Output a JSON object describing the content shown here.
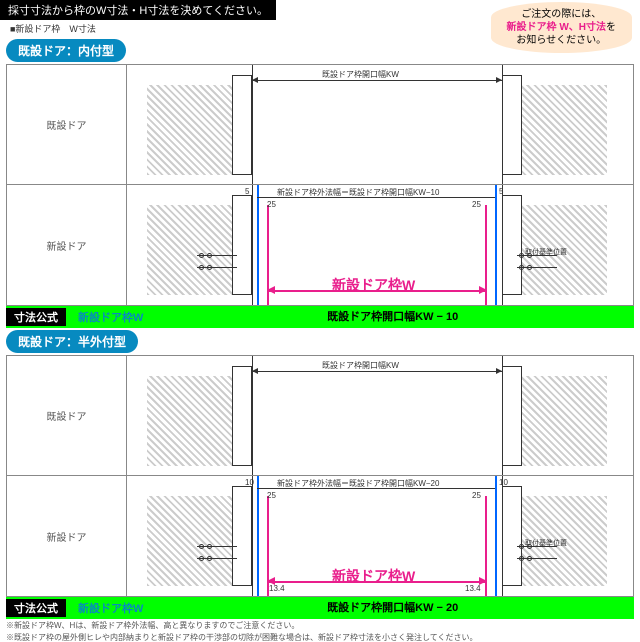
{
  "header_instruction": "採寸寸法から枠のW寸法・H寸法を決めてください。",
  "header_sub": "■新設ドア枠　W寸法",
  "notice": {
    "l1": "ご注文の際には、",
    "l2": "新設ドア枠 W、H寸法",
    "l3": "お知らせください。"
  },
  "sections": [
    {
      "badge": "既設ドア：内付型",
      "rows": [
        {
          "label": "既設ドア",
          "dim_top": "既設ドア枠開口幅KW"
        },
        {
          "label": "新設ドア",
          "dim_top": "新設ドア枠外法幅＝既設ドア枠開口幅KW−10",
          "small_left": "5",
          "small_right": "5",
          "inner": "25",
          "pink_label": "新設ドア枠W",
          "note_right": "取付基準位置"
        }
      ],
      "formula": {
        "a": "寸法公式",
        "b": "新設ドア枠W",
        "c": "既設ドア枠開口幅KW − 10"
      }
    },
    {
      "badge": "既設ドア：半外付型",
      "rows": [
        {
          "label": "既設ドア",
          "dim_top": "既設ドア枠開口幅KW"
        },
        {
          "label": "新設ドア",
          "dim_top": "新設ドア枠外法幅＝既設ドア枠開口幅KW−20",
          "small_left": "10",
          "small_right": "10",
          "inner": "25",
          "extra": "13.4",
          "pink_label": "新設ドア枠W",
          "note_right": "取付基準位置"
        }
      ],
      "formula": {
        "a": "寸法公式",
        "b": "新設ドア枠W",
        "c": "既設ドア枠開口幅KW − 20"
      }
    }
  ],
  "footnotes": [
    "※新設ドア枠W、Hは、新設ドア枠外法幅、高と異なりますのでご注意ください。",
    "※既設ドア枠の屋外側ヒレや内部納まりと新設ドア枠の干渉部の切除が困難な場合は、新設ドア枠寸法を小さく発注してください。"
  ],
  "colors": {
    "green": "#00ff00",
    "blue_badge": "#078ac0",
    "pink": "#e91e8c",
    "blue_line": "#0066ff"
  }
}
